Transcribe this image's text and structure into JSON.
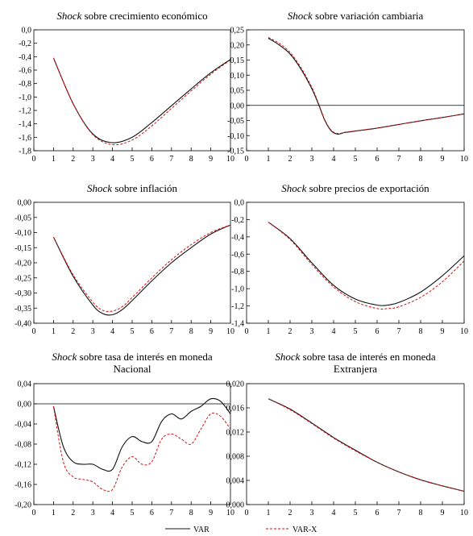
{
  "legend": {
    "series": [
      "VAR",
      "VAR-X"
    ]
  },
  "chart_data": [
    {
      "type": "line",
      "title_em": "Shock",
      "title_rest": " sobre crecimiento económico",
      "title_line2": "",
      "x": [
        1,
        2,
        3,
        4,
        5,
        6,
        7,
        8,
        9,
        10
      ],
      "xticks": [
        "0",
        "1",
        "2",
        "3",
        "4",
        "5",
        "6",
        "7",
        "8",
        "9",
        "10"
      ],
      "xlim": [
        0,
        10
      ],
      "ylim": [
        -1.8,
        0.0
      ],
      "yticks": [
        "0,0",
        "-0,2",
        "-0,4",
        "-0,6",
        "-0,8",
        "-1,0",
        "-1,2",
        "-1,4",
        "-1,6",
        "-1,8"
      ],
      "yticks_val": [
        0.0,
        -0.2,
        -0.4,
        -0.6,
        -0.8,
        -1.0,
        -1.2,
        -1.4,
        -1.6,
        -1.8
      ],
      "zero_line": false,
      "series": [
        {
          "name": "VAR",
          "values": [
            -0.42,
            -1.1,
            -1.55,
            -1.68,
            -1.6,
            -1.38,
            -1.13,
            -0.88,
            -0.64,
            -0.44
          ]
        },
        {
          "name": "VAR-X",
          "values": [
            -0.42,
            -1.1,
            -1.56,
            -1.71,
            -1.64,
            -1.43,
            -1.17,
            -0.91,
            -0.66,
            -0.45
          ]
        }
      ]
    },
    {
      "type": "line",
      "title_em": "Shock",
      "title_rest": " sobre variación cambiaria",
      "title_line2": "",
      "x": [
        1,
        1.5,
        2,
        2.5,
        3,
        3.3,
        3.6,
        3.9,
        4.2,
        4.5,
        4.8,
        5,
        6,
        7,
        8,
        9,
        10
      ],
      "xticks": [
        "0",
        "1",
        "2",
        "3",
        "4",
        "5",
        "6",
        "7",
        "8",
        "9",
        "10"
      ],
      "xlim": [
        0,
        10
      ],
      "ylim": [
        -0.15,
        0.25
      ],
      "yticks": [
        "0,25",
        "0,20",
        "0,15",
        "0,10",
        "0,05",
        "0,00",
        "-0,05",
        "-0,10",
        "-0,15"
      ],
      "yticks_val": [
        0.25,
        0.2,
        0.15,
        0.1,
        0.05,
        0.0,
        -0.05,
        -0.1,
        -0.15
      ],
      "zero_line": true,
      "series": [
        {
          "name": "VAR",
          "values": [
            0.222,
            0.2,
            0.17,
            0.12,
            0.055,
            0.005,
            -0.05,
            -0.085,
            -0.095,
            -0.09,
            -0.087,
            -0.085,
            -0.075,
            -0.063,
            -0.051,
            -0.04,
            -0.028
          ]
        },
        {
          "name": "VAR-X",
          "values": [
            0.225,
            0.205,
            0.175,
            0.125,
            0.06,
            0.008,
            -0.048,
            -0.083,
            -0.093,
            -0.089,
            -0.086,
            -0.084,
            -0.075,
            -0.063,
            -0.051,
            -0.04,
            -0.028
          ]
        }
      ]
    },
    {
      "type": "line",
      "title_em": "Shock",
      "title_rest": " sobre inflación",
      "title_line2": "",
      "x": [
        1,
        2,
        3,
        3.5,
        4,
        4.5,
        5,
        6,
        7,
        8,
        9,
        10
      ],
      "xticks": [
        "0",
        "1",
        "2",
        "3",
        "4",
        "5",
        "6",
        "7",
        "8",
        "9",
        "10"
      ],
      "xlim": [
        0,
        10
      ],
      "ylim": [
        -0.4,
        0.0
      ],
      "yticks": [
        "0,00",
        "-0,05",
        "-0,10",
        "-0,15",
        "-0,20",
        "-0,25",
        "-0,30",
        "-0,35",
        "-0,40"
      ],
      "yticks_val": [
        0.0,
        -0.05,
        -0.1,
        -0.15,
        -0.2,
        -0.25,
        -0.3,
        -0.35,
        -0.4
      ],
      "zero_line": false,
      "series": [
        {
          "name": "VAR",
          "values": [
            -0.115,
            -0.245,
            -0.34,
            -0.368,
            -0.372,
            -0.355,
            -0.325,
            -0.26,
            -0.2,
            -0.15,
            -0.105,
            -0.075
          ]
        },
        {
          "name": "VAR-X",
          "values": [
            -0.115,
            -0.24,
            -0.33,
            -0.357,
            -0.36,
            -0.345,
            -0.315,
            -0.25,
            -0.19,
            -0.14,
            -0.1,
            -0.075
          ]
        }
      ]
    },
    {
      "type": "line",
      "title_em": "Shock",
      "title_rest": " sobre precios de exportación",
      "title_line2": "",
      "x": [
        1,
        2,
        3,
        4,
        5,
        6,
        6.5,
        7,
        8,
        9,
        10
      ],
      "xticks": [
        "0",
        "1",
        "2",
        "3",
        "4",
        "5",
        "6",
        "7",
        "8",
        "9",
        "10"
      ],
      "xlim": [
        0,
        10
      ],
      "ylim": [
        -1.4,
        0.0
      ],
      "yticks": [
        "0,0",
        "-0,2",
        "-0,4",
        "-0,6",
        "-0,8",
        "-1,0",
        "-1,2",
        "-1,4"
      ],
      "yticks_val": [
        0.0,
        -0.2,
        -0.4,
        -0.6,
        -0.8,
        -1.0,
        -1.2,
        -1.4
      ],
      "zero_line": false,
      "series": [
        {
          "name": "VAR",
          "values": [
            -0.23,
            -0.42,
            -0.7,
            -0.96,
            -1.12,
            -1.19,
            -1.19,
            -1.16,
            -1.04,
            -0.85,
            -0.62
          ]
        },
        {
          "name": "VAR-X",
          "values": [
            -0.23,
            -0.43,
            -0.72,
            -0.98,
            -1.15,
            -1.23,
            -1.23,
            -1.21,
            -1.1,
            -0.92,
            -0.68
          ]
        }
      ]
    },
    {
      "type": "line",
      "title_em": "Shock",
      "title_rest": " sobre tasa de interés en moneda",
      "title_line2": "Nacional",
      "x": [
        1,
        1.5,
        2,
        2.5,
        3,
        3.5,
        4,
        4.5,
        5,
        5.5,
        6,
        6.5,
        7,
        7.5,
        8,
        8.5,
        9,
        9.5,
        10
      ],
      "xticks": [
        "0",
        "1",
        "2",
        "3",
        "4",
        "5",
        "6",
        "7",
        "8",
        "9",
        "10"
      ],
      "xlim": [
        0,
        10
      ],
      "ylim": [
        -0.2,
        0.04
      ],
      "yticks": [
        "0,04",
        "0,00",
        "-0,04",
        "-0,08",
        "-0,12",
        "-0,16",
        "-0,20"
      ],
      "yticks_val": [
        0.04,
        0.0,
        -0.04,
        -0.08,
        -0.12,
        -0.16,
        -0.2
      ],
      "zero_line": true,
      "series": [
        {
          "name": "VAR",
          "values": [
            -0.005,
            -0.085,
            -0.115,
            -0.12,
            -0.12,
            -0.13,
            -0.13,
            -0.085,
            -0.065,
            -0.075,
            -0.075,
            -0.035,
            -0.02,
            -0.03,
            -0.015,
            -0.005,
            0.01,
            0.005,
            -0.02
          ]
        },
        {
          "name": "VAR-X",
          "values": [
            -0.005,
            -0.115,
            -0.145,
            -0.15,
            -0.155,
            -0.17,
            -0.17,
            -0.125,
            -0.105,
            -0.12,
            -0.115,
            -0.07,
            -0.06,
            -0.07,
            -0.08,
            -0.05,
            -0.02,
            -0.025,
            -0.05
          ]
        }
      ]
    },
    {
      "type": "line",
      "title_em": "Shock",
      "title_rest": " sobre tasa de interés en moneda",
      "title_line2": "Extranjera",
      "x": [
        1,
        2,
        3,
        4,
        5,
        6,
        7,
        8,
        9,
        10
      ],
      "xticks": [
        "0",
        "1",
        "2",
        "3",
        "4",
        "5",
        "6",
        "7",
        "8",
        "9",
        "10"
      ],
      "xlim": [
        0,
        10
      ],
      "ylim": [
        0.0,
        0.02
      ],
      "yticks": [
        "0,020",
        "0,016",
        "0,012",
        "0,008",
        "0,004",
        "0,000"
      ],
      "yticks_val": [
        0.02,
        0.016,
        0.012,
        0.008,
        0.004,
        0.0
      ],
      "zero_line": false,
      "series": [
        {
          "name": "VAR",
          "values": [
            0.0175,
            0.0158,
            0.0135,
            0.0111,
            0.009,
            0.007,
            0.0054,
            0.0041,
            0.0031,
            0.0022
          ]
        },
        {
          "name": "VAR-X",
          "values": [
            0.0175,
            0.0157,
            0.0134,
            0.011,
            0.0089,
            0.007,
            0.0054,
            0.0041,
            0.0031,
            0.0022
          ]
        }
      ]
    }
  ]
}
